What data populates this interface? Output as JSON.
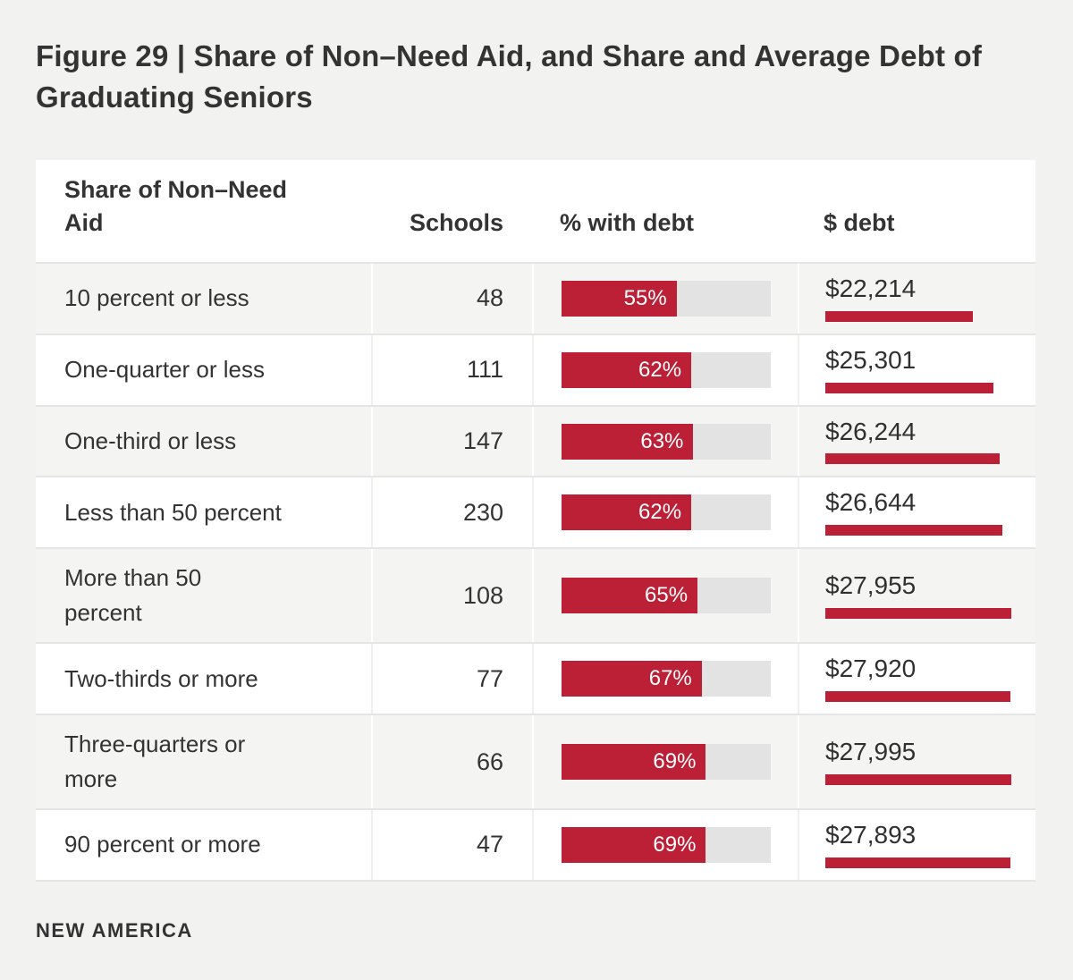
{
  "title": "Figure 29 | Share of Non–Need Aid, and Share and Average Debt of Graduating Seniors",
  "footer": {
    "brand": "NEW AMERICA"
  },
  "colors": {
    "accent_red": "#bb2037",
    "bar_track_gray": "#e3e3e3",
    "stripe_row": "#f4f4f3",
    "page_background": "#f2f2f1",
    "divider": "#e5e5e5",
    "text": "#333333"
  },
  "chart_data": {
    "type": "table",
    "title": "Figure 29 | Share of Non–Need Aid, and Share and Average Debt of Graduating Seniors",
    "columns": [
      "Share of Non–Need Aid",
      "Schools",
      "% with debt",
      "$ debt"
    ],
    "pct_axis_max": 100,
    "debt_axis_max": 28000,
    "legend": "none",
    "rows": [
      {
        "aid_share": "10 percent or less",
        "schools": "48",
        "pct_with_debt": 55,
        "avg_debt": 22214,
        "avg_debt_display": "$22,214"
      },
      {
        "aid_share": "One-quarter or less",
        "schools": "111",
        "pct_with_debt": 62,
        "avg_debt": 25301,
        "avg_debt_display": "$25,301"
      },
      {
        "aid_share": "One-third or less",
        "schools": "147",
        "pct_with_debt": 63,
        "avg_debt": 26244,
        "avg_debt_display": "$26,244"
      },
      {
        "aid_share": "Less than 50 percent",
        "schools": "230",
        "pct_with_debt": 62,
        "avg_debt": 26644,
        "avg_debt_display": "$26,644"
      },
      {
        "aid_share": "More than 50 percent",
        "schools": "108",
        "pct_with_debt": 65,
        "avg_debt": 27955,
        "avg_debt_display": "$27,955"
      },
      {
        "aid_share": "Two-thirds or more",
        "schools": "77",
        "pct_with_debt": 67,
        "avg_debt": 27920,
        "avg_debt_display": "$27,920"
      },
      {
        "aid_share": "Three-quarters or more",
        "schools": "66",
        "pct_with_debt": 69,
        "avg_debt": 27995,
        "avg_debt_display": "$27,995"
      },
      {
        "aid_share": "90 percent or more",
        "schools": "47",
        "pct_with_debt": 69,
        "avg_debt": 27893,
        "avg_debt_display": "$27,893"
      }
    ]
  }
}
